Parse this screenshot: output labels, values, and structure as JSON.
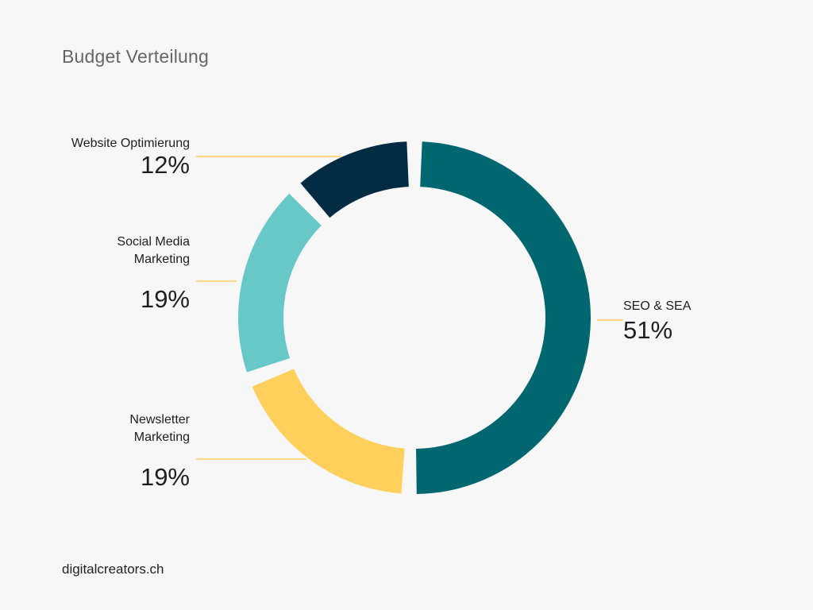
{
  "title": "Budget Verteilung",
  "footer": "digitalcreators.ch",
  "chart_data": {
    "type": "pie",
    "style": "donut",
    "categories": [
      "SEO & SEA",
      "Newsletter Marketing",
      "Social Media Marketing",
      "Website Optimierung"
    ],
    "label_lines": [
      [
        "SEO & SEA"
      ],
      [
        "Newsletter",
        "Marketing"
      ],
      [
        "Social Media",
        "Marketing"
      ],
      [
        "Website Optimierung"
      ]
    ],
    "values": [
      51,
      19,
      19,
      12
    ],
    "value_labels": [
      "51%",
      "19%",
      "19%",
      "12%"
    ],
    "colors": [
      "#006670",
      "#ffd15c",
      "#68c8c8",
      "#002b42"
    ],
    "leader_line_color": "#ffd15c"
  }
}
